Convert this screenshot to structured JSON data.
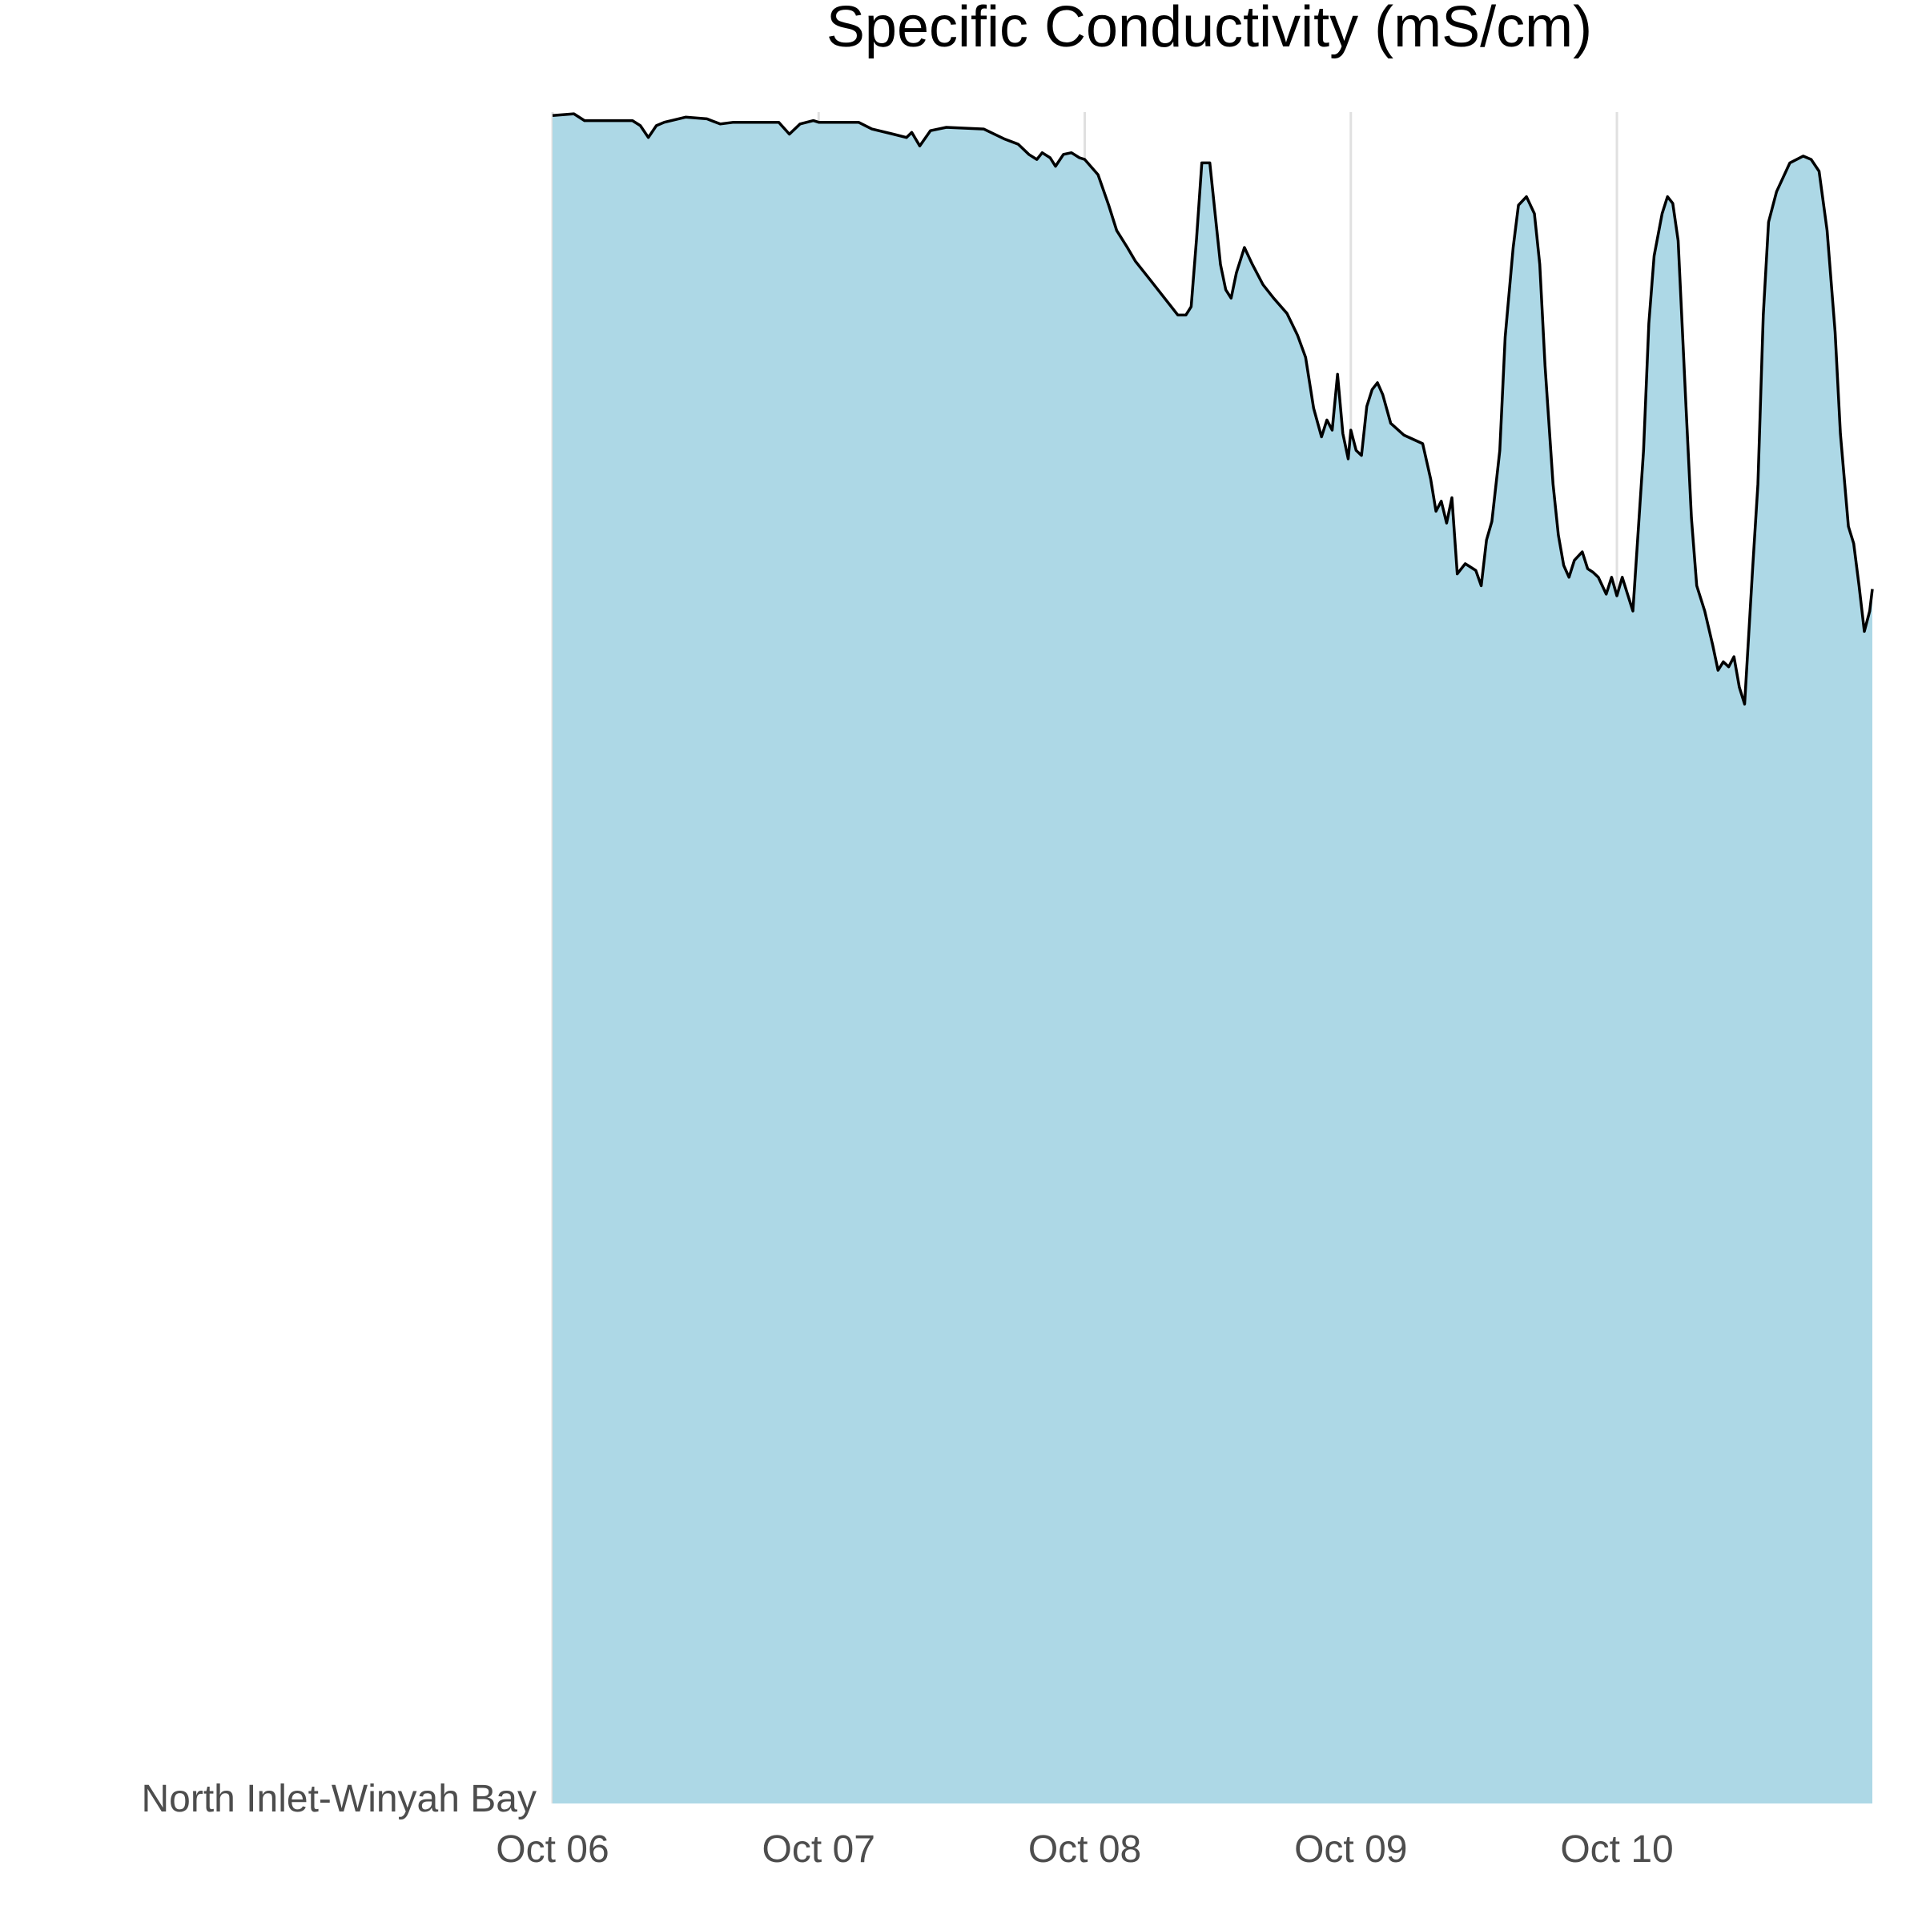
{
  "chart_data": {
    "type": "area",
    "title": "Specific Conductivity (mS/cm)",
    "xlabel": "",
    "ylabel": "",
    "x_tick_labels": [
      "Oct 06",
      "Oct 07",
      "Oct 08",
      "Oct 09",
      "Oct 10"
    ],
    "y_tick_labels": [
      "North Inlet-Winyah Bay"
    ],
    "series_category": "North Inlet-Winyah Bay",
    "x_unit": "days from Oct 06 00:00",
    "xlim": [
      0,
      4.96
    ],
    "ylim": [
      0,
      1
    ],
    "grid": "vertical",
    "legend": "none",
    "fill_color": "#add8e6",
    "line_color": "#000000",
    "points": [
      [
        0.0,
        0.998
      ],
      [
        0.08,
        0.999
      ],
      [
        0.12,
        0.995
      ],
      [
        0.3,
        0.995
      ],
      [
        0.33,
        0.992
      ],
      [
        0.36,
        0.985
      ],
      [
        0.39,
        0.992
      ],
      [
        0.42,
        0.994
      ],
      [
        0.5,
        0.997
      ],
      [
        0.58,
        0.996
      ],
      [
        0.63,
        0.993
      ],
      [
        0.68,
        0.994
      ],
      [
        0.85,
        0.994
      ],
      [
        0.89,
        0.987
      ],
      [
        0.93,
        0.993
      ],
      [
        0.98,
        0.995
      ],
      [
        1.0,
        0.994
      ],
      [
        1.15,
        0.994
      ],
      [
        1.2,
        0.99
      ],
      [
        1.28,
        0.987
      ],
      [
        1.33,
        0.985
      ],
      [
        1.35,
        0.988
      ],
      [
        1.38,
        0.98
      ],
      [
        1.42,
        0.989
      ],
      [
        1.48,
        0.991
      ],
      [
        1.62,
        0.99
      ],
      [
        1.7,
        0.984
      ],
      [
        1.75,
        0.981
      ],
      [
        1.79,
        0.975
      ],
      [
        1.82,
        0.972
      ],
      [
        1.84,
        0.976
      ],
      [
        1.87,
        0.973
      ],
      [
        1.89,
        0.968
      ],
      [
        1.92,
        0.975
      ],
      [
        1.95,
        0.976
      ],
      [
        1.98,
        0.973
      ],
      [
        2.0,
        0.972
      ],
      [
        2.05,
        0.963
      ],
      [
        2.09,
        0.945
      ],
      [
        2.12,
        0.93
      ],
      [
        2.16,
        0.92
      ],
      [
        2.19,
        0.912
      ],
      [
        2.25,
        0.9
      ],
      [
        2.3,
        0.89
      ],
      [
        2.35,
        0.88
      ],
      [
        2.38,
        0.88
      ],
      [
        2.4,
        0.885
      ],
      [
        2.42,
        0.925
      ],
      [
        2.44,
        0.97
      ],
      [
        2.47,
        0.97
      ],
      [
        2.49,
        0.94
      ],
      [
        2.51,
        0.91
      ],
      [
        2.53,
        0.895
      ],
      [
        2.55,
        0.89
      ],
      [
        2.57,
        0.905
      ],
      [
        2.6,
        0.92
      ],
      [
        2.63,
        0.91
      ],
      [
        2.67,
        0.898
      ],
      [
        2.71,
        0.89
      ],
      [
        2.76,
        0.881
      ],
      [
        2.8,
        0.868
      ],
      [
        2.83,
        0.855
      ],
      [
        2.86,
        0.825
      ],
      [
        2.89,
        0.808
      ],
      [
        2.91,
        0.818
      ],
      [
        2.93,
        0.812
      ],
      [
        2.95,
        0.845
      ],
      [
        2.97,
        0.81
      ],
      [
        2.99,
        0.795
      ],
      [
        3.0,
        0.812
      ],
      [
        3.02,
        0.8
      ],
      [
        3.04,
        0.797
      ],
      [
        3.06,
        0.826
      ],
      [
        3.08,
        0.836
      ],
      [
        3.1,
        0.84
      ],
      [
        3.12,
        0.833
      ],
      [
        3.15,
        0.816
      ],
      [
        3.2,
        0.809
      ],
      [
        3.27,
        0.804
      ],
      [
        3.3,
        0.783
      ],
      [
        3.32,
        0.764
      ],
      [
        3.34,
        0.77
      ],
      [
        3.36,
        0.757
      ],
      [
        3.38,
        0.772
      ],
      [
        3.4,
        0.727
      ],
      [
        3.43,
        0.733
      ],
      [
        3.45,
        0.731
      ],
      [
        3.47,
        0.729
      ],
      [
        3.49,
        0.72
      ],
      [
        3.51,
        0.747
      ],
      [
        3.53,
        0.758
      ],
      [
        3.56,
        0.8
      ],
      [
        3.58,
        0.867
      ],
      [
        3.61,
        0.92
      ],
      [
        3.63,
        0.945
      ],
      [
        3.66,
        0.95
      ],
      [
        3.69,
        0.94
      ],
      [
        3.71,
        0.91
      ],
      [
        3.73,
        0.85
      ],
      [
        3.76,
        0.78
      ],
      [
        3.78,
        0.75
      ],
      [
        3.8,
        0.732
      ],
      [
        3.82,
        0.725
      ],
      [
        3.84,
        0.735
      ],
      [
        3.87,
        0.74
      ],
      [
        3.89,
        0.73
      ],
      [
        3.91,
        0.728
      ],
      [
        3.93,
        0.725
      ],
      [
        3.96,
        0.715
      ],
      [
        3.98,
        0.725
      ],
      [
        4.0,
        0.714
      ],
      [
        4.02,
        0.725
      ],
      [
        4.04,
        0.715
      ],
      [
        4.06,
        0.705
      ],
      [
        4.1,
        0.8
      ],
      [
        4.12,
        0.875
      ],
      [
        4.14,
        0.915
      ],
      [
        4.17,
        0.94
      ],
      [
        4.19,
        0.95
      ],
      [
        4.21,
        0.946
      ],
      [
        4.23,
        0.924
      ],
      [
        4.26,
        0.825
      ],
      [
        4.28,
        0.76
      ],
      [
        4.3,
        0.72
      ],
      [
        4.33,
        0.705
      ],
      [
        4.36,
        0.685
      ],
      [
        4.38,
        0.67
      ],
      [
        4.4,
        0.675
      ],
      [
        4.42,
        0.672
      ],
      [
        4.44,
        0.678
      ],
      [
        4.46,
        0.66
      ],
      [
        4.48,
        0.65
      ],
      [
        4.51,
        0.73
      ],
      [
        4.53,
        0.78
      ],
      [
        4.55,
        0.88
      ],
      [
        4.57,
        0.935
      ],
      [
        4.6,
        0.953
      ],
      [
        4.65,
        0.97
      ],
      [
        4.7,
        0.974
      ],
      [
        4.73,
        0.972
      ],
      [
        4.76,
        0.965
      ],
      [
        4.79,
        0.93
      ],
      [
        4.82,
        0.87
      ],
      [
        4.84,
        0.81
      ],
      [
        4.87,
        0.755
      ],
      [
        4.89,
        0.745
      ],
      [
        4.91,
        0.72
      ],
      [
        4.93,
        0.693
      ],
      [
        4.95,
        0.705
      ],
      [
        4.96,
        0.718
      ]
    ]
  }
}
